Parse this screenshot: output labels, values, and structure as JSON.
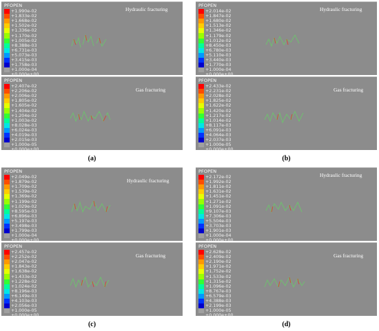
{
  "legend_colors": [
    "#ff0000",
    "#ff4d00",
    "#ff9900",
    "#ffcc00",
    "#e6ff00",
    "#99ff00",
    "#33ff33",
    "#00ff99",
    "#00e6e6",
    "#0099ff",
    "#0033ff",
    "#0000cc",
    "#a0a0a0"
  ],
  "panels": [
    {
      "caption": "(a)",
      "top": {
        "legend_title": "PFOPEN",
        "label": "Hydraulic fracturing",
        "values": [
          "+1.990e-02",
          "+1.833e-02",
          "+1.668e-02",
          "+1.502e-02",
          "+1.336e-02",
          "+1.170e-02",
          "+1.005e-02",
          "+8.388e-03",
          "+6.731e-03",
          "+5.073e-03",
          "+3.415e-03",
          "+1.758e-03",
          "+1.000e-04",
          "+0.000e+00"
        ]
      },
      "bottom": {
        "legend_title": "PFOPEN",
        "label": "Gas fracturing",
        "values": [
          "+2.407e-02",
          "+2.206e-02",
          "+2.006e-02",
          "+1.805e-02",
          "+1.605e-02",
          "+1.404e-02",
          "+1.204e-02",
          "+1.003e-02",
          "+8.028e-03",
          "+6.024e-03",
          "+4.019e-03",
          "+2.015e-03",
          "+1.000e-05",
          "+0.000e+00"
        ]
      }
    },
    {
      "caption": "(b)",
      "top": {
        "legend_title": "PFOPEN",
        "label": "Hydraulic fracturing",
        "values": [
          "+2.014e-02",
          "+1.847e-02",
          "+1.680e-02",
          "+1.513e-02",
          "+1.346e-02",
          "+1.179e-02",
          "+1.012e-02",
          "+8.450e-03",
          "+6.780e-03",
          "+5.110e-03",
          "+3.440e-03",
          "+1.770e-03",
          "+1.000e-04",
          "+0.000e+00"
        ]
      },
      "bottom": {
        "legend_title": "PFOPEN",
        "label": "Gas fracturing",
        "values": [
          "+2.433e-02",
          "+2.231e-02",
          "+2.028e-02",
          "+1.825e-02",
          "+1.622e-02",
          "+1.420e-02",
          "+1.217e-02",
          "+1.014e-02",
          "+8.117e-03",
          "+6.091e-03",
          "+4.064e-03",
          "+2.037e-03",
          "+1.000e-05",
          "+0.000e+00"
        ]
      }
    },
    {
      "caption": "(c)",
      "top": {
        "legend_title": "PFOPEN",
        "label": "Hydraulic fracturing",
        "values": [
          "+2.049e-02",
          "+1.879e-02",
          "+1.709e-02",
          "+1.539e-02",
          "+1.369e-02",
          "+1.199e-02",
          "+1.029e-02",
          "+8.595e-03",
          "+6.896e-03",
          "+5.197e-03",
          "+3.498e-03",
          "+1.799e-03",
          "+1.000e-04",
          "+0.000e+00"
        ]
      },
      "bottom": {
        "legend_title": "PFOPEN",
        "label": "Gas fracturing",
        "values": [
          "+2.457e-02",
          "+2.252e-02",
          "+2.047e-02",
          "+1.843e-02",
          "+1.638e-02",
          "+1.433e-02",
          "+1.228e-02",
          "+1.024e-02",
          "+8.196e-03",
          "+6.149e-03",
          "+4.103e-03",
          "+2.056e-03",
          "+1.000e-05",
          "+0.000e+00"
        ]
      }
    },
    {
      "caption": "(d)",
      "top": {
        "legend_title": "PFOPEN",
        "label": "Hydraulic fracturing",
        "values": [
          "+2.172e-02",
          "+1.992e-02",
          "+1.811e-02",
          "+1.631e-02",
          "+1.451e-02",
          "+1.271e-02",
          "+1.091e-02",
          "+9.107e-03",
          "+7.306e-03",
          "+5.504e-03",
          "+3.703e-03",
          "+1.901e-03",
          "+1.000e-04",
          "+0.000e+00"
        ]
      },
      "bottom": {
        "legend_title": "PFOPEN",
        "label": "Gas fracturing",
        "values": [
          "+2.628e-02",
          "+2.409e-02",
          "+2.190e-02",
          "+1.971e-02",
          "+1.752e-02",
          "+1.533e-02",
          "+1.315e-02",
          "+1.096e-02",
          "+8.767e-03",
          "+6.579e-03",
          "+4.388e-03",
          "+2.199e-03",
          "+1.000e-05",
          "+0.000e+00"
        ]
      }
    }
  ]
}
